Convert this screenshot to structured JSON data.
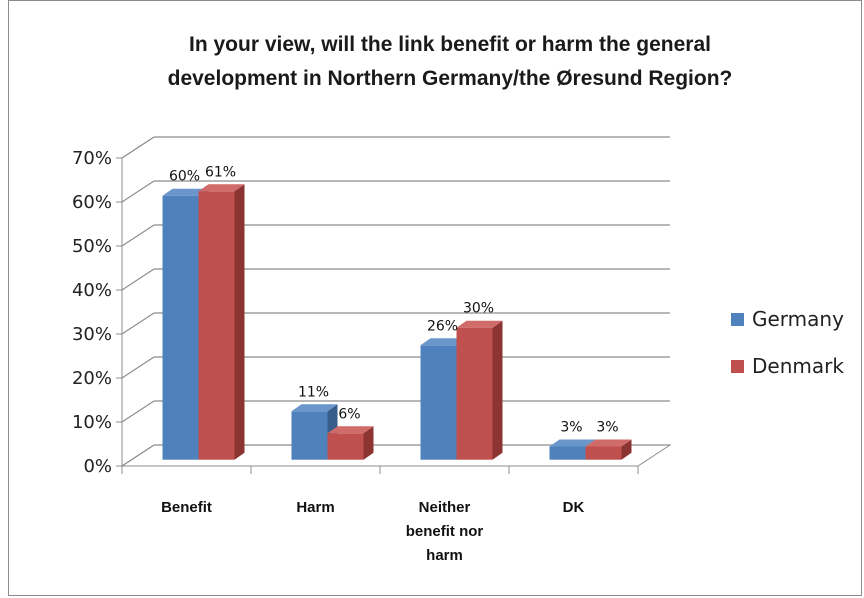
{
  "chart_data": {
    "type": "bar",
    "title_line1": "In your view, will the link benefit or harm the general",
    "title_line2": "development in Northern Germany/the Øresund Region?",
    "categories": [
      [
        "Benefit"
      ],
      [
        "Harm"
      ],
      [
        "Neither",
        "benefit nor",
        "harm"
      ],
      [
        "DK"
      ]
    ],
    "series": [
      {
        "name": "Germany",
        "values": [
          60,
          11,
          26,
          3
        ],
        "labels": [
          "60%",
          "11%",
          "26%",
          "3%"
        ],
        "color": "#4f81bd",
        "dark": "#385d8a",
        "top": "#6a96cc"
      },
      {
        "name": "Denmark",
        "values": [
          61,
          6,
          30,
          3
        ],
        "labels": [
          "61%",
          "6%",
          "30%",
          "3%"
        ],
        "color": "#c0504d",
        "dark": "#8b3432",
        "top": "#cf6b68"
      }
    ],
    "y_ticks": [
      "0%",
      "10%",
      "20%",
      "30%",
      "40%",
      "50%",
      "60%",
      "70%"
    ],
    "ylim": [
      0,
      70
    ],
    "legend_position": "right",
    "grid": true
  }
}
